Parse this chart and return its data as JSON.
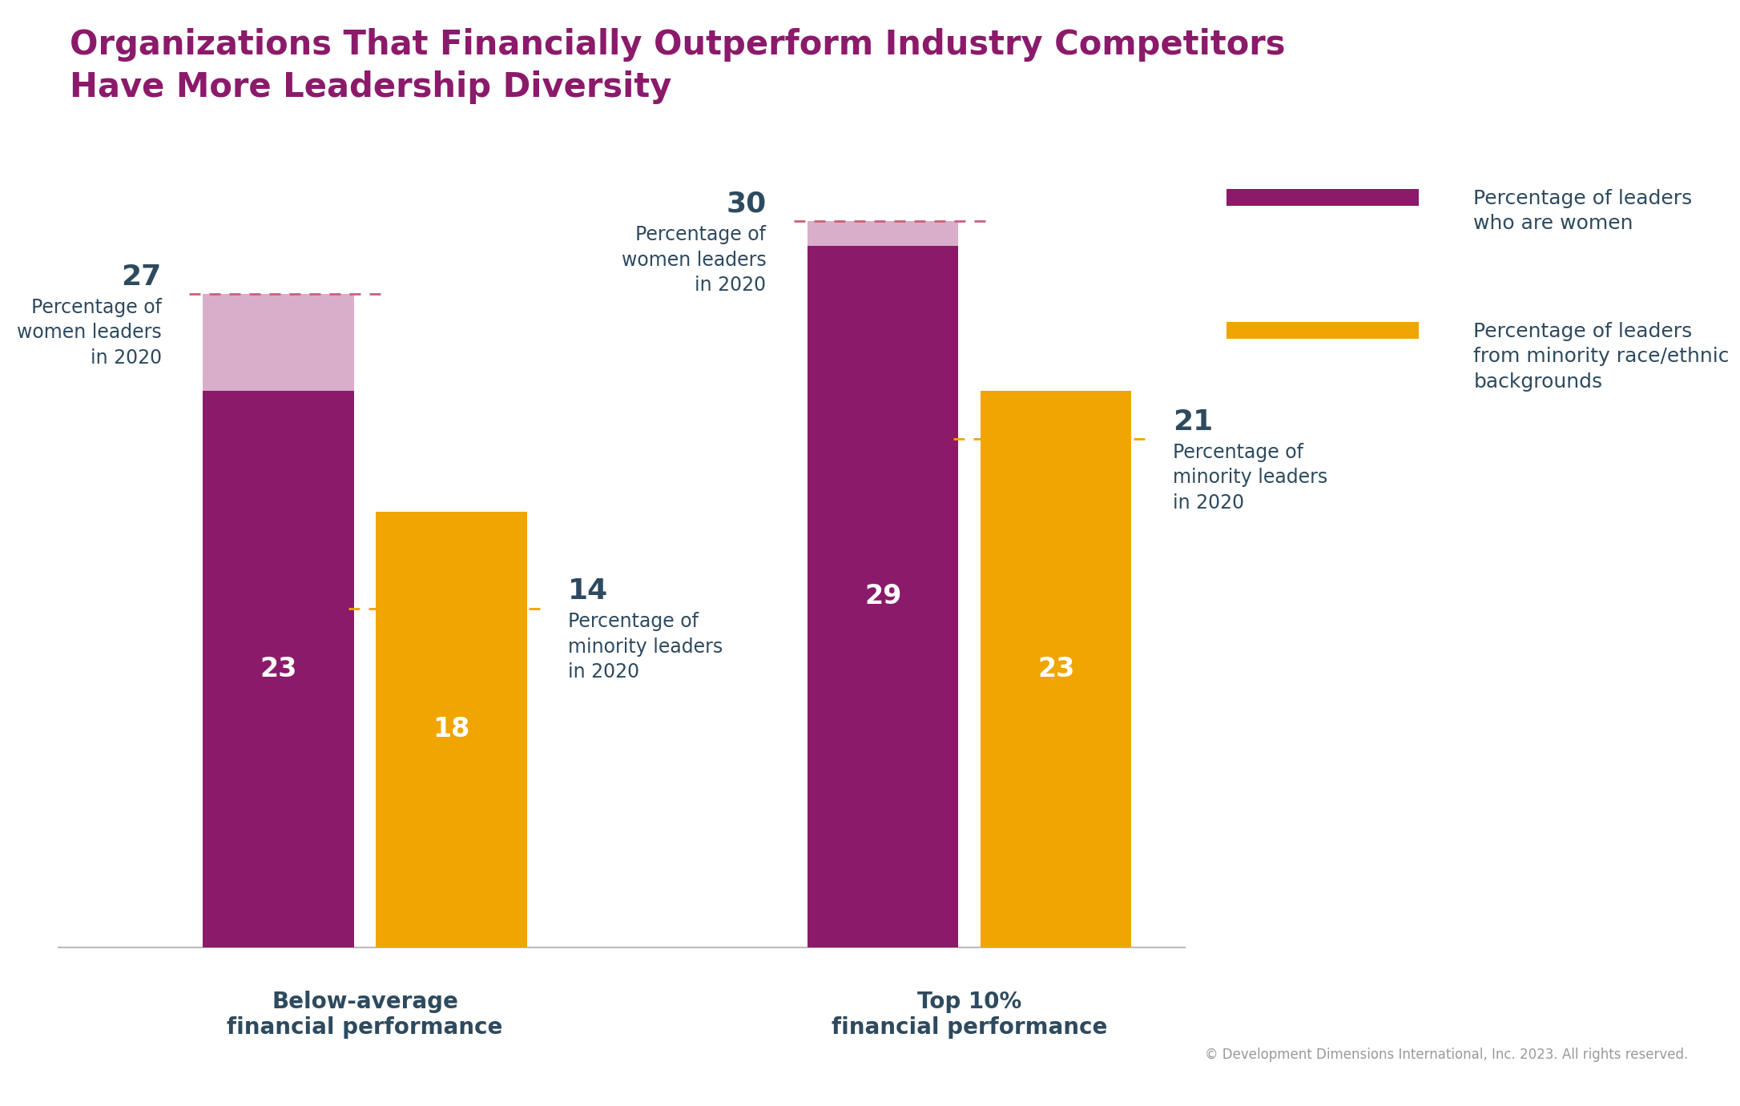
{
  "title_line1": "Organizations That Financially Outperform Industry Competitors",
  "title_line2": "Have More Leadership Diversity",
  "title_color": "#8B1A6B",
  "title_fontsize": 30,
  "background_color": "#FFFFFF",
  "groups": [
    "Below-average\nfinancial performance",
    "Top 10%\nfinancial performance"
  ],
  "women_actual": [
    23,
    29
  ],
  "women_target": [
    27,
    30
  ],
  "minority_actual": [
    18,
    23
  ],
  "minority_target": [
    14,
    21
  ],
  "color_women_dark": "#8B1A6B",
  "color_women_light": "#D9AECB",
  "color_minority": "#F0A500",
  "color_dash_pink": "#C8607A",
  "color_dash_orange": "#F0A500",
  "ylim_max": 35,
  "legend_women_label": "Percentage of leaders\nwho are women",
  "legend_minority_label": "Percentage of leaders\nfrom minority race/ethnic\nbackgrounds",
  "annotation_color_dark": "#2D4A5F",
  "copyright_text": "© Development Dimensions International, Inc. 2023. All rights reserved.",
  "group_label_fontsize": 20,
  "bar_number_fontsize": 24,
  "annotation_number_fontsize": 26,
  "annotation_label_fontsize": 17,
  "legend_fontsize": 18,
  "copyright_fontsize": 12
}
